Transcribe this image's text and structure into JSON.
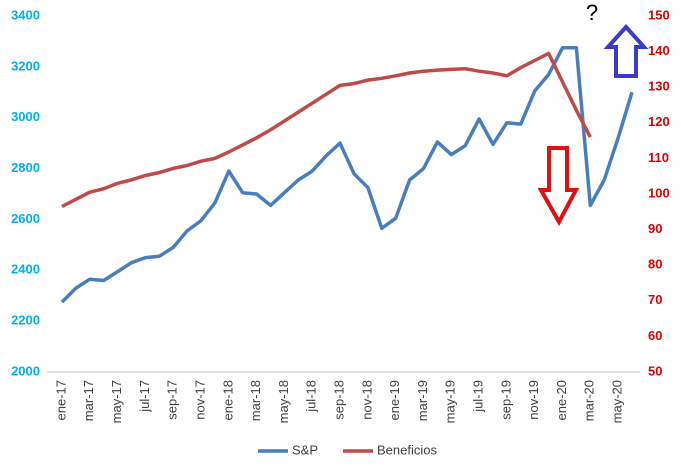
{
  "chart_data": {
    "type": "line",
    "categories": [
      "ene-17",
      null,
      "mar-17",
      null,
      "may-17",
      null,
      "jul-17",
      null,
      "sep-17",
      null,
      "nov-17",
      null,
      "ene-18",
      null,
      "mar-18",
      null,
      "may-18",
      null,
      "jul-18",
      null,
      "sep-18",
      null,
      "nov-18",
      null,
      "ene-19",
      null,
      "mar-19",
      null,
      "may-19",
      null,
      "jul-19",
      null,
      "sep-19",
      null,
      "nov-19",
      null,
      "ene-20",
      null,
      "mar-20",
      null,
      "may-20",
      null
    ],
    "series": [
      {
        "name": "S&P",
        "color": "#4a7ebb",
        "values": [
          2275,
          2330,
          2365,
          2360,
          2395,
          2430,
          2450,
          2455,
          2490,
          2555,
          2595,
          2665,
          2790,
          2705,
          2700,
          2655,
          2705,
          2755,
          2790,
          2850,
          2900,
          2780,
          2725,
          2565,
          2605,
          2755,
          2800,
          2905,
          2855,
          2890,
          2995,
          2895,
          2980,
          2975,
          3105,
          3170,
          3275,
          3275,
          2655,
          2755,
          2920,
          3100
        ]
      },
      {
        "name": "Beneficios",
        "color": "#be4b48",
        "axis": "y2",
        "values": [
          96.5,
          98.5,
          100.5,
          101.5,
          103,
          104,
          105.2,
          106,
          107.2,
          108,
          109.2,
          110,
          111.8,
          113.8,
          115.8,
          118,
          120.5,
          123,
          125.5,
          128,
          130.5,
          131,
          132,
          132.5,
          133.2,
          134,
          134.5,
          134.8,
          135,
          135.2,
          134.5,
          134,
          133.2,
          135.5,
          137.5,
          139.5,
          131.5,
          123.5,
          116,
          null,
          null,
          null
        ]
      }
    ],
    "ylim": [
      2000,
      3400
    ],
    "yticks": [
      2000,
      2200,
      2400,
      2600,
      2800,
      3000,
      3200,
      3400
    ],
    "ytick_color": "#00b0f0",
    "y2lim": [
      50,
      150
    ],
    "y2ticks": [
      50,
      60,
      70,
      80,
      90,
      100,
      110,
      120,
      130,
      140,
      150
    ],
    "y2tick_color": "#e00000",
    "grid": false,
    "legend": "bottom",
    "annotations": [
      "?"
    ]
  }
}
